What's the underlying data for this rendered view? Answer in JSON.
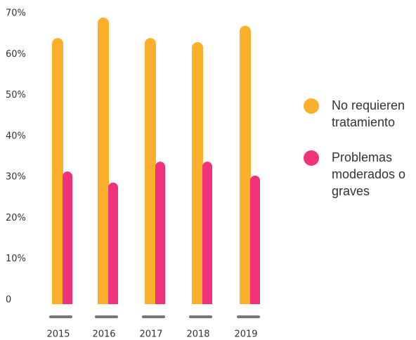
{
  "chart_data": {
    "type": "bar",
    "categories": [
      "2015",
      "2016",
      "2017",
      "2018",
      "2019"
    ],
    "series": [
      {
        "name": "No requieren tratamiento",
        "color": "#fbb02b",
        "values": [
          65,
          70,
          65,
          64,
          68
        ]
      },
      {
        "name": "Problemas moderados o graves",
        "color": "#f0327a",
        "values": [
          32.4,
          29.7,
          34.8,
          34.8,
          31.4
        ]
      }
    ],
    "ylim": [
      0,
      70
    ],
    "yticks": [
      0,
      {
        "value": 10,
        "label": "10%"
      },
      {
        "value": 20,
        "label": "20%"
      },
      {
        "value": 30,
        "label": "30%"
      },
      {
        "value": 40,
        "label": "40%"
      },
      {
        "value": 50,
        "label": "50%"
      },
      {
        "value": 60,
        "label": "60%"
      },
      {
        "value": 70,
        "label": "70%"
      }
    ]
  }
}
